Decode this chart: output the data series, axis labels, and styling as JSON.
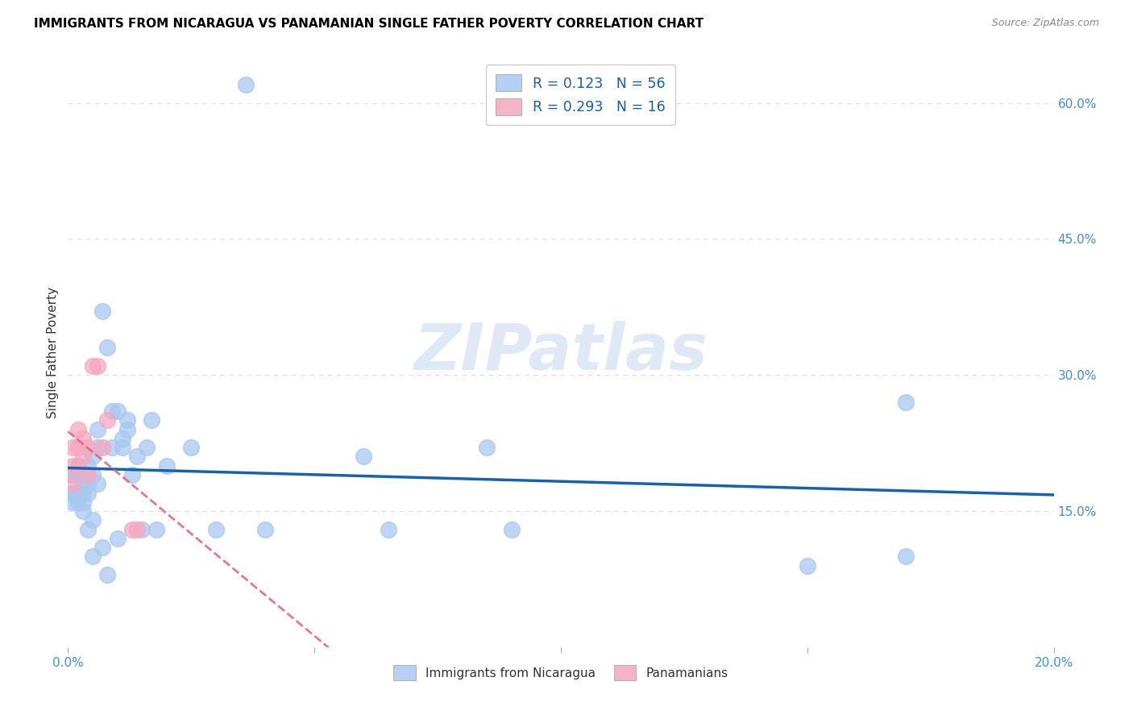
{
  "title": "IMMIGRANTS FROM NICARAGUA VS PANAMANIAN SINGLE FATHER POVERTY CORRELATION CHART",
  "source": "Source: ZipAtlas.com",
  "ylabel": "Single Father Poverty",
  "xlim": [
    0.0,
    0.2
  ],
  "ylim": [
    0.0,
    0.65
  ],
  "xticks": [
    0.0,
    0.05,
    0.1,
    0.15,
    0.2
  ],
  "xticklabels": [
    "0.0%",
    "",
    "",
    "",
    "20.0%"
  ],
  "yticks_right": [
    0.0,
    0.15,
    0.3,
    0.45,
    0.6
  ],
  "yticklabels_right": [
    "",
    "15.0%",
    "30.0%",
    "45.0%",
    "60.0%"
  ],
  "r_blue": 0.123,
  "n_blue": 56,
  "r_pink": 0.293,
  "n_pink": 16,
  "color_blue": "#A8C8F0",
  "color_pink": "#F4A8C0",
  "line_blue": "#1860B0",
  "line_pink": "#E06080",
  "watermark_text": "ZIPatlas",
  "legend_label_blue": "Immigrants from Nicaragua",
  "legend_label_pink": "Panamanians",
  "blue_x": [
    0.001,
    0.001,
    0.001,
    0.001,
    0.001,
    0.002,
    0.002,
    0.002,
    0.002,
    0.002,
    0.003,
    0.003,
    0.003,
    0.003,
    0.003,
    0.004,
    0.004,
    0.004,
    0.004,
    0.005,
    0.005,
    0.005,
    0.005,
    0.006,
    0.006,
    0.006,
    0.007,
    0.007,
    0.008,
    0.008,
    0.009,
    0.009,
    0.01,
    0.01,
    0.011,
    0.011,
    0.012,
    0.012,
    0.013,
    0.014,
    0.015,
    0.016,
    0.017,
    0.018,
    0.02,
    0.025,
    0.03,
    0.04,
    0.06,
    0.065,
    0.085,
    0.09,
    0.15,
    0.036,
    0.17,
    0.17
  ],
  "blue_y": [
    0.19,
    0.19,
    0.17,
    0.16,
    0.17,
    0.2,
    0.2,
    0.19,
    0.17,
    0.16,
    0.15,
    0.17,
    0.18,
    0.16,
    0.19,
    0.13,
    0.17,
    0.2,
    0.18,
    0.19,
    0.21,
    0.14,
    0.1,
    0.22,
    0.24,
    0.18,
    0.11,
    0.37,
    0.33,
    0.08,
    0.26,
    0.22,
    0.12,
    0.26,
    0.22,
    0.23,
    0.24,
    0.25,
    0.19,
    0.21,
    0.13,
    0.22,
    0.25,
    0.13,
    0.2,
    0.22,
    0.13,
    0.13,
    0.21,
    0.13,
    0.22,
    0.13,
    0.09,
    0.62,
    0.27,
    0.1
  ],
  "pink_x": [
    0.001,
    0.001,
    0.001,
    0.002,
    0.002,
    0.002,
    0.003,
    0.003,
    0.004,
    0.004,
    0.005,
    0.006,
    0.007,
    0.008,
    0.013,
    0.014
  ],
  "pink_y": [
    0.22,
    0.2,
    0.18,
    0.22,
    0.24,
    0.2,
    0.21,
    0.23,
    0.22,
    0.19,
    0.31,
    0.31,
    0.22,
    0.25,
    0.13,
    0.13
  ],
  "grid_color": "#DDDDDD",
  "bg_color": "#FFFFFF"
}
